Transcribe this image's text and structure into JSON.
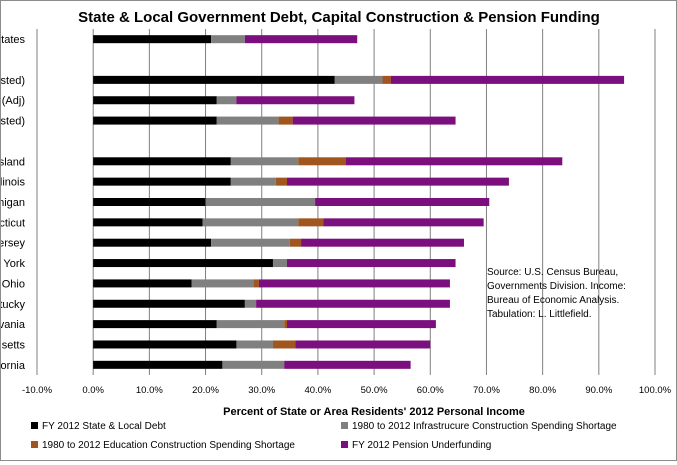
{
  "chart_data": {
    "type": "bar",
    "orientation": "horizontal",
    "stacked": true,
    "title": "State & Local Government Debt, Capital Construction & Pension Funding",
    "xlabel": "Percent of State or Area Residents' 2012 Personal Income",
    "ylabel": "",
    "xlim": [
      -10,
      100
    ],
    "x_ticks": [
      "-10.0%",
      "0.0%",
      "10.0%",
      "20.0%",
      "30.0%",
      "40.0%",
      "50.0%",
      "60.0%",
      "70.0%",
      "80.0%",
      "90.0%",
      "100.0%"
    ],
    "grid": true,
    "legend_position": "bottom",
    "categories": [
      "United States",
      "",
      "NYC (Adjusted)",
      "Rest of NY (Adj)",
      "NJ (Adjusted)",
      "",
      "Rhode Island",
      "Illinois",
      "Michigan",
      "Connecticut",
      "New Jersey",
      "New York",
      "Ohio",
      "Kentucky",
      "Pennsylvania",
      "Massachusetts",
      "California"
    ],
    "series": [
      {
        "name": "FY 2012 State & Local Debt",
        "color": "#000000",
        "values": [
          21.0,
          null,
          43.0,
          22.0,
          22.0,
          null,
          24.5,
          24.5,
          20.0,
          19.5,
          21.0,
          32.0,
          17.5,
          27.0,
          22.0,
          25.5,
          23.0
        ]
      },
      {
        "name": "1980 to 2012 Infrastrucure Construction Spending Shortage",
        "color": "#808080",
        "values": [
          6.0,
          null,
          8.5,
          3.5,
          11.0,
          null,
          12.0,
          8.0,
          19.5,
          17.0,
          14.0,
          2.5,
          11.0,
          2.0,
          12.0,
          6.5,
          11.0
        ]
      },
      {
        "name": "1980 to 2012 Education Construction Spending Shortage",
        "color": "#a0561e",
        "values": [
          0.0,
          null,
          1.5,
          0.0,
          2.5,
          null,
          8.5,
          2.0,
          0.0,
          4.5,
          2.0,
          0.0,
          1.0,
          0.0,
          0.5,
          4.0,
          0.0
        ]
      },
      {
        "name": "FY 2012 Pension Underfunding",
        "color": "#7b0f7e",
        "values": [
          20.0,
          null,
          41.5,
          21.0,
          29.0,
          null,
          38.5,
          39.5,
          31.0,
          28.5,
          29.0,
          30.0,
          34.0,
          34.5,
          26.5,
          24.0,
          22.5
        ]
      }
    ],
    "annotation": [
      "Source:  U.S. Census Bureau,",
      "Governments Division.  Income:",
      "Bureau of Economic Analysis.",
      "Tabulation:  L. Littlefield."
    ]
  }
}
